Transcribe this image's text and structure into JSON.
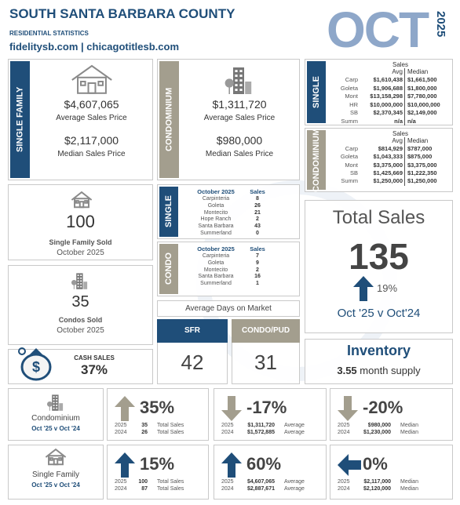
{
  "header": {
    "title": "SOUTH SANTA BARBARA COUNTY",
    "subtitle": "RESIDENTIAL STATISTICS",
    "websites": "fidelitysb.com | chicagotitlesb.com",
    "month": "OCT",
    "year": "2025"
  },
  "single_family": {
    "label": "SINGLE FAMILY",
    "average_price": "$4,607,065",
    "average_label": "Average Sales Price",
    "median_price": "$2,117,000",
    "median_label": "Median Sales Price"
  },
  "condominium": {
    "label": "CONDOMINIUM",
    "average_price": "$1,311,720",
    "average_label": "Average Sales Price",
    "median_price": "$980,000",
    "median_label": "Median Sales Price"
  },
  "single_prices": {
    "label": "SINGLE",
    "headers": [
      "Sales",
      "Avg",
      "Median"
    ],
    "rows": [
      [
        "Carp",
        "$1,610,438",
        "$1,661,500"
      ],
      [
        "Goleta",
        "$1,906,688",
        "$1,800,000"
      ],
      [
        "Mont",
        "$13,158,298",
        "$7,780,000"
      ],
      [
        "HR",
        "$10,000,000",
        "$10,000,000"
      ],
      [
        "SB",
        "$2,370,345",
        "$2,149,000"
      ],
      [
        "Summ",
        "n/a",
        "n/a"
      ]
    ]
  },
  "condo_prices": {
    "label": "CONDOMINIUM",
    "headers": [
      "Sales",
      "Avg",
      "Median"
    ],
    "rows": [
      [
        "Carp",
        "$814,929",
        "$787,000"
      ],
      [
        "Goleta",
        "$1,043,333",
        "$875,000"
      ],
      [
        "Mont",
        "$3,375,000",
        "$3,375,000"
      ],
      [
        "SB",
        "$1,425,669",
        "$1,222,350"
      ],
      [
        "Summ",
        "$1,250,000",
        "$1,250,000"
      ]
    ]
  },
  "single_family_sold": {
    "count": "100",
    "label": "Single Family Sold",
    "period": "October 2025"
  },
  "condos_sold": {
    "count": "35",
    "label": "Condos Sold",
    "period": "October 2025"
  },
  "cash_sales": {
    "label": "CASH SALES",
    "value": "37%"
  },
  "single_sales": {
    "label": "SINGLE",
    "period": "October 2025",
    "header": "Sales",
    "rows": [
      [
        "Carpinteria",
        "8"
      ],
      [
        "Goleta",
        "26"
      ],
      [
        "Montecito",
        "21"
      ],
      [
        "Hope Ranch",
        "2"
      ],
      [
        "Santa Barbara",
        "43"
      ],
      [
        "Summerland",
        "0"
      ]
    ]
  },
  "condo_sales": {
    "label": "CONDO",
    "period": "October 2025",
    "header": "Sales",
    "rows": [
      [
        "Carpinteria",
        "7"
      ],
      [
        "Goleta",
        "9"
      ],
      [
        "Montecito",
        "2"
      ],
      [
        "Santa Barbara",
        "16"
      ],
      [
        "Summerland",
        "1"
      ]
    ]
  },
  "days_on_market": {
    "label": "Average Days on Market",
    "sfr_label": "SFR",
    "sfr_value": "42",
    "condo_label": "CONDO/PUD",
    "condo_value": "31"
  },
  "total_sales": {
    "label": "Total Sales",
    "value": "135",
    "change": "19%",
    "comparison": "Oct '25 v Oct'24"
  },
  "inventory": {
    "label": "Inventory",
    "value": "3.55",
    "unit": "month supply"
  },
  "comparisons": [
    {
      "label": "Condominium",
      "period": "Oct '25 v Oct '24",
      "stats": [
        {
          "change": "35%",
          "arrow": "up",
          "rows": [
            [
              "2025",
              "35",
              "Total Sales"
            ],
            [
              "2024",
              "26",
              "Total Sales"
            ]
          ]
        },
        {
          "change": "-17%",
          "arrow": "down",
          "rows": [
            [
              "2025",
              "$1,311,720",
              "Average"
            ],
            [
              "2024",
              "$1,572,885",
              "Average"
            ]
          ]
        },
        {
          "change": "-20%",
          "arrow": "down",
          "rows": [
            [
              "2025",
              "$980,000",
              "Median"
            ],
            [
              "2024",
              "$1,230,000",
              "Median"
            ]
          ]
        }
      ]
    },
    {
      "label": "Single Family",
      "period": "Oct '25 v Oct '24",
      "stats": [
        {
          "change": "15%",
          "arrow": "up",
          "rows": [
            [
              "2025",
              "100",
              "Total Sales"
            ],
            [
              "2024",
              "87",
              "Total Sales"
            ]
          ]
        },
        {
          "change": "60%",
          "arrow": "up",
          "rows": [
            [
              "2025",
              "$4,607,065",
              "Average"
            ],
            [
              "2024",
              "$2,887,671",
              "Average"
            ]
          ]
        },
        {
          "change": "0%",
          "arrow": "left",
          "rows": [
            [
              "2025",
              "$2,117,000",
              "Median"
            ],
            [
              "2024",
              "$2,120,000",
              "Median"
            ]
          ]
        }
      ]
    }
  ]
}
